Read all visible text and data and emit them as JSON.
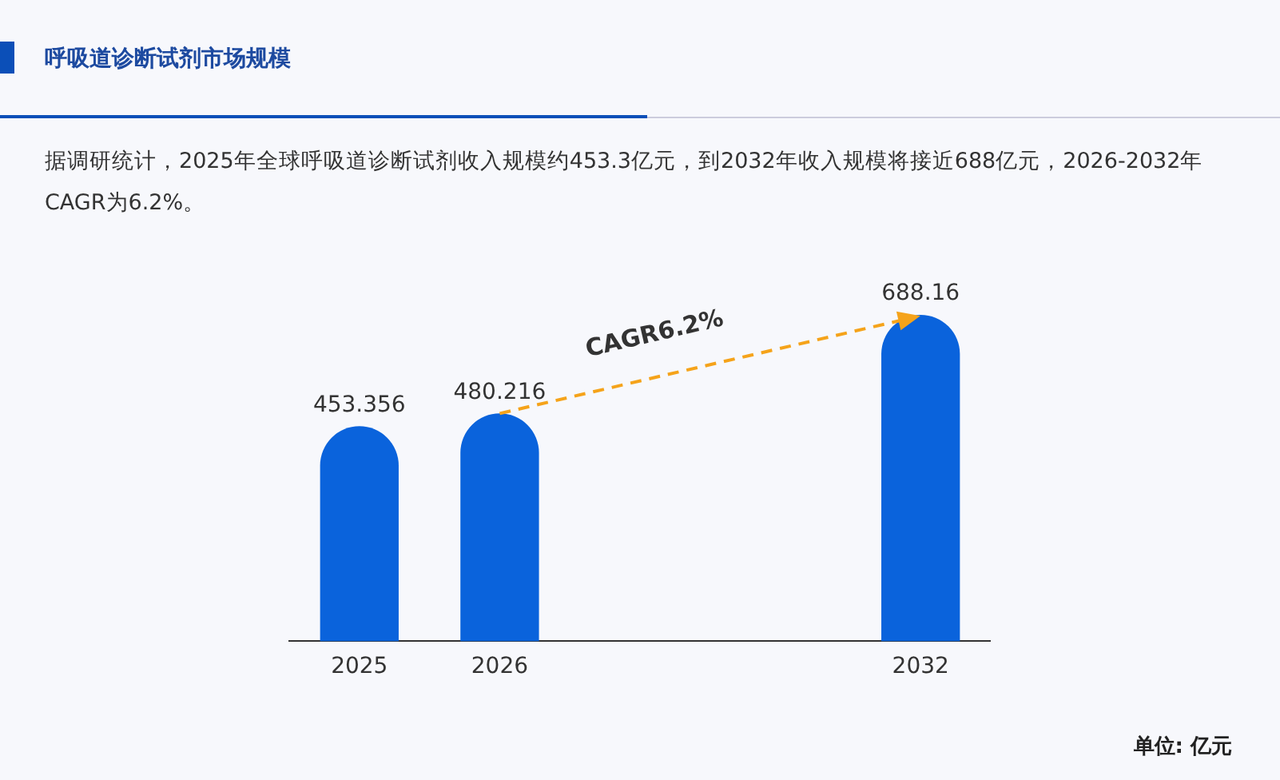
{
  "chart_data": {
    "type": "bar",
    "title": "呼吸道诊断试剂市场规模",
    "subtitle": "据调研统计，2025年全球呼吸道诊断试剂收入规模约453.3亿元，到2032年收入规模将接近688亿元，2026-2032年CAGR为6.2%。",
    "categories": [
      "2025",
      "2026",
      null,
      null,
      "2032"
    ],
    "values": [
      453.356,
      480.216,
      null,
      null,
      688.16
    ],
    "color": "#0a63dc",
    "data_labels": true,
    "relative": false,
    "grid": false,
    "legend": false,
    "annotations": [
      "CAGR6.2%",
      "单位: 亿元"
    ]
  }
}
